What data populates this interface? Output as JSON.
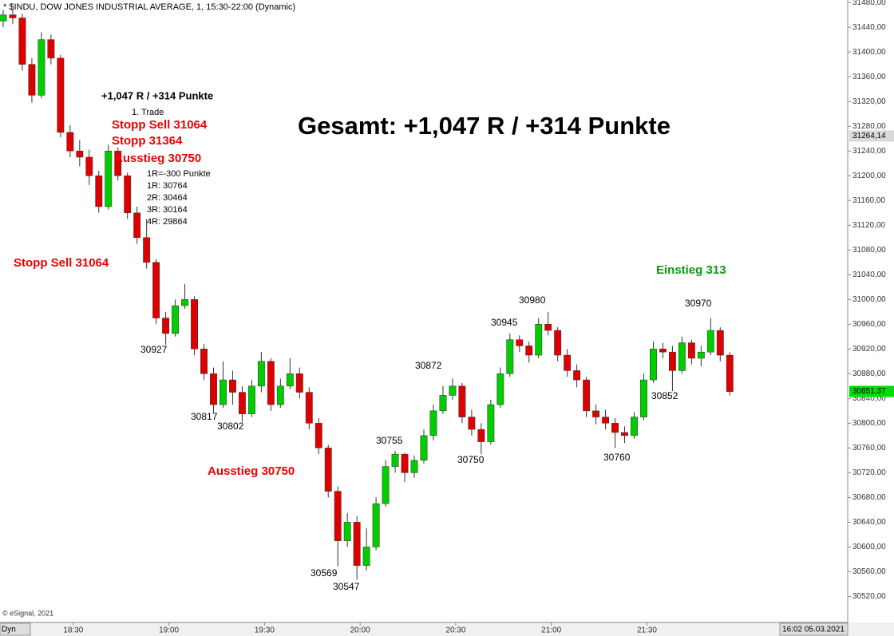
{
  "chart_data": {
    "type": "candlestick",
    "title": "* $INDU, DOW JONES INDUSTRIAL AVERAGE, 1, 15:30-22:00 (Dynamic)",
    "x": [
      "18:08",
      "18:11",
      "18:14",
      "18:17",
      "18:20",
      "18:23",
      "18:26",
      "18:29",
      "18:32",
      "18:35",
      "18:38",
      "18:41",
      "18:44",
      "18:47",
      "18:50",
      "18:53",
      "18:56",
      "18:59",
      "19:02",
      "19:05",
      "19:08",
      "19:11",
      "19:14",
      "19:17",
      "19:20",
      "19:23",
      "19:26",
      "19:29",
      "19:32",
      "19:35",
      "19:38",
      "19:41",
      "19:44",
      "19:47",
      "19:50",
      "19:53",
      "19:56",
      "19:59",
      "20:02",
      "20:05",
      "20:08",
      "20:11",
      "20:14",
      "20:17",
      "20:20",
      "20:23",
      "20:26",
      "20:29",
      "20:32",
      "20:35",
      "20:38",
      "20:41",
      "20:44",
      "20:47",
      "20:50",
      "20:53",
      "20:56",
      "20:59",
      "21:02",
      "21:05",
      "21:08",
      "21:11",
      "21:14",
      "21:17",
      "21:20",
      "21:23",
      "21:26",
      "21:29",
      "21:32",
      "21:35",
      "21:38",
      "21:41",
      "21:44",
      "21:47",
      "21:50",
      "21:53",
      "21:56"
    ],
    "open": [
      31450,
      31460,
      31455,
      31380,
      31330,
      31420,
      31390,
      31270,
      31240,
      31230,
      31200,
      31150,
      31240,
      31200,
      31140,
      31100,
      31060,
      30970,
      30945,
      30990,
      31000,
      30920,
      30880,
      30830,
      30870,
      30850,
      30815,
      30860,
      30900,
      30830,
      30860,
      30880,
      30850,
      30800,
      30760,
      30690,
      30610,
      30640,
      30570,
      30600,
      30670,
      30730,
      30750,
      30720,
      30740,
      30780,
      30820,
      30845,
      30860,
      30810,
      30790,
      30770,
      30830,
      30880,
      30935,
      30925,
      30910,
      30960,
      30950,
      30910,
      30885,
      30870,
      30820,
      30810,
      30800,
      30785,
      30780,
      30810,
      30870,
      30920,
      30915,
      30885,
      30930,
      30905,
      30915,
      30950,
      30910
    ],
    "high": [
      31468,
      31470,
      31462,
      31390,
      31432,
      31428,
      31395,
      31282,
      31258,
      31242,
      31208,
      31250,
      31246,
      31205,
      31150,
      31130,
      31065,
      30980,
      31000,
      31025,
      31005,
      30928,
      30890,
      30900,
      30885,
      30860,
      30870,
      30915,
      30905,
      30872,
      30905,
      30890,
      30858,
      30808,
      30765,
      30698,
      30655,
      30650,
      30630,
      30680,
      30740,
      30755,
      30752,
      30748,
      30790,
      30830,
      30860,
      30872,
      30865,
      30822,
      30800,
      30838,
      30890,
      30945,
      30942,
      30932,
      30970,
      30980,
      30955,
      30920,
      30895,
      30875,
      30830,
      30822,
      30808,
      30795,
      30818,
      30880,
      30932,
      30930,
      30925,
      30940,
      30935,
      30925,
      30970,
      30955,
      30915
    ],
    "low": [
      31440,
      31445,
      31370,
      31318,
      31325,
      31380,
      31262,
      31230,
      31215,
      31185,
      31140,
      31145,
      31192,
      31130,
      31090,
      31050,
      30960,
      30927,
      30940,
      30985,
      30910,
      30870,
      30817,
      30825,
      30830,
      30802,
      30810,
      30850,
      30820,
      30825,
      30855,
      30840,
      30790,
      30750,
      30680,
      30569,
      30600,
      30547,
      30562,
      30595,
      30665,
      30720,
      30705,
      30712,
      30735,
      30772,
      30815,
      30838,
      30800,
      30780,
      30750,
      30765,
      30825,
      30875,
      30915,
      30898,
      30905,
      30942,
      30900,
      30875,
      30858,
      30810,
      30798,
      30790,
      30760,
      30768,
      30775,
      30805,
      30865,
      30905,
      30852,
      30880,
      30895,
      30892,
      30910,
      30900,
      30845
    ],
    "close": [
      31460,
      31455,
      31380,
      31330,
      31420,
      31390,
      31270,
      31240,
      31230,
      31200,
      31150,
      31240,
      31200,
      31140,
      31100,
      31060,
      30970,
      30945,
      30990,
      31000,
      30920,
      30880,
      30830,
      30870,
      30850,
      30815,
      30860,
      30900,
      30830,
      30860,
      30880,
      30850,
      30800,
      30760,
      30690,
      30610,
      30640,
      30570,
      30600,
      30670,
      30730,
      30750,
      30720,
      30740,
      30780,
      30820,
      30845,
      30860,
      30810,
      30790,
      30770,
      30830,
      30880,
      30935,
      30925,
      30910,
      30960,
      30950,
      30910,
      30885,
      30870,
      30820,
      30810,
      30800,
      30785,
      30780,
      30810,
      30870,
      30920,
      30915,
      30885,
      30930,
      30905,
      30915,
      30950,
      30910,
      30851
    ],
    "up_color": "#00cc00",
    "down_color": "#dd0000",
    "xlim": [
      "18:07",
      "22:33"
    ],
    "xticks": [
      "18:30",
      "19:00",
      "19:30",
      "20:00",
      "20:30",
      "21:00",
      "21:30"
    ],
    "ylim": [
      30478,
      31484
    ],
    "yticks": [
      {
        "value": 30520,
        "label": "30520,00"
      },
      {
        "value": 30560,
        "label": "30560,00"
      },
      {
        "value": 30600,
        "label": "30600,00"
      },
      {
        "value": 30640,
        "label": "30640,00"
      },
      {
        "value": 30680,
        "label": "30680,00"
      },
      {
        "value": 30720,
        "label": "30720,00"
      },
      {
        "value": 30760,
        "label": "30760,00"
      },
      {
        "value": 30800,
        "label": "30800,00"
      },
      {
        "value": 30840,
        "label": "30840,00"
      },
      {
        "value": 30880,
        "label": "30880,00"
      },
      {
        "value": 30920,
        "label": "30920,00"
      },
      {
        "value": 30960,
        "label": "30960,00"
      },
      {
        "value": 31000,
        "label": "31000,00"
      },
      {
        "value": 31040,
        "label": "31040,00"
      },
      {
        "value": 31080,
        "label": "31080,00"
      },
      {
        "value": 31120,
        "label": "31120,00"
      },
      {
        "value": 31160,
        "label": "31160,00"
      },
      {
        "value": 31200,
        "label": "31200,00"
      },
      {
        "value": 31240,
        "label": "31240,00"
      },
      {
        "value": 31280,
        "label": "31280,00"
      },
      {
        "value": 31320,
        "label": "31320,00"
      },
      {
        "value": 31360,
        "label": "31360,00"
      },
      {
        "value": 31400,
        "label": "31400,00"
      },
      {
        "value": 31440,
        "label": "31440,00"
      },
      {
        "value": 31480,
        "label": "31480,00"
      }
    ],
    "price_markers": [
      {
        "value": 31264.14,
        "label": "31264,14",
        "color": "#d9d9d9"
      },
      {
        "value": 30851.37,
        "label": "30851,37",
        "color": "#00dd00"
      }
    ],
    "annotations": [
      {
        "text": "+1,047 R / +314 Punkte",
        "color": "#000000"
      },
      {
        "text": "1. Trade",
        "color": "#000000"
      },
      {
        "text": "Stopp Sell 31064",
        "color": "#ee0000"
      },
      {
        "text": "Stopp 31364",
        "color": "#ee0000"
      },
      {
        "text": "Ausstieg 30750",
        "color": "#ee0000"
      },
      {
        "text": "1R=-300 Punkte",
        "color": "#000000"
      },
      {
        "text": "1R: 30764",
        "color": "#000000"
      },
      {
        "text": "2R: 30464",
        "color": "#000000"
      },
      {
        "text": "3R: 30164",
        "color": "#000000"
      },
      {
        "text": "4R: 29864",
        "color": "#000000"
      },
      {
        "text": "Gesamt: +1,047 R / +314 Punkte",
        "color": "#000000"
      },
      {
        "text": "Stopp Sell 31064",
        "color": "#ee0000"
      },
      {
        "text": "Ausstieg 30750",
        "color": "#ee0000"
      },
      {
        "text": "Einstieg 313",
        "color": "#119911"
      },
      {
        "text": "30927",
        "color": "#000000"
      },
      {
        "text": "30817",
        "color": "#000000"
      },
      {
        "text": "30802",
        "color": "#000000"
      },
      {
        "text": "30569",
        "color": "#000000"
      },
      {
        "text": "30547",
        "color": "#000000"
      },
      {
        "text": "30755",
        "color": "#000000"
      },
      {
        "text": "30872",
        "color": "#000000"
      },
      {
        "text": "30750",
        "color": "#000000"
      },
      {
        "text": "30945",
        "color": "#000000"
      },
      {
        "text": "30980",
        "color": "#000000"
      },
      {
        "text": "30760",
        "color": "#000000"
      },
      {
        "text": "30852",
        "color": "#000000"
      },
      {
        "text": "30970",
        "color": "#000000"
      }
    ],
    "source": "© eSignal, 2021",
    "mode_label": "Dyn",
    "timestamp": "16:02 05.03.2021"
  }
}
